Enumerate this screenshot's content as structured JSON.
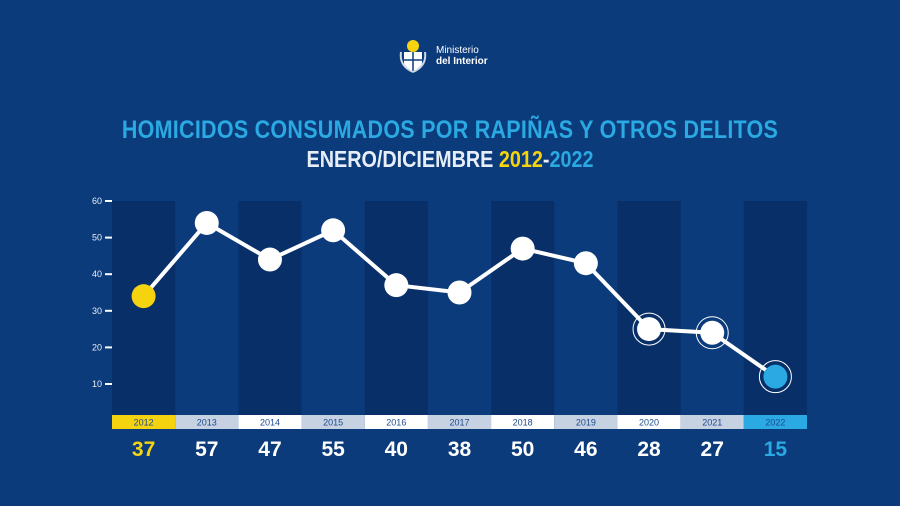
{
  "logo": {
    "line1": "Ministerio",
    "line2": "del Interior"
  },
  "chart_data": {
    "type": "line",
    "title": "HOMICIDOS CONSUMADOS POR RAPIÑAS Y OTROS DELITOS",
    "subtitle_prefix": "ENERO/DICIEMBRE ",
    "subtitle_start": "2012",
    "subtitle_sep": "-",
    "subtitle_end": "2022",
    "categories": [
      "2012",
      "2013",
      "2014",
      "2015",
      "2016",
      "2017",
      "2018",
      "2019",
      "2020",
      "2021",
      "2022"
    ],
    "values": [
      37,
      57,
      47,
      55,
      40,
      38,
      50,
      46,
      28,
      27,
      15
    ],
    "yticks": [
      10,
      20,
      30,
      40,
      50,
      60
    ],
    "ylim": [
      0,
      60
    ],
    "colors": {
      "first": "#f5d40f",
      "last": "#2aa9e2",
      "point": "#ffffff"
    }
  }
}
